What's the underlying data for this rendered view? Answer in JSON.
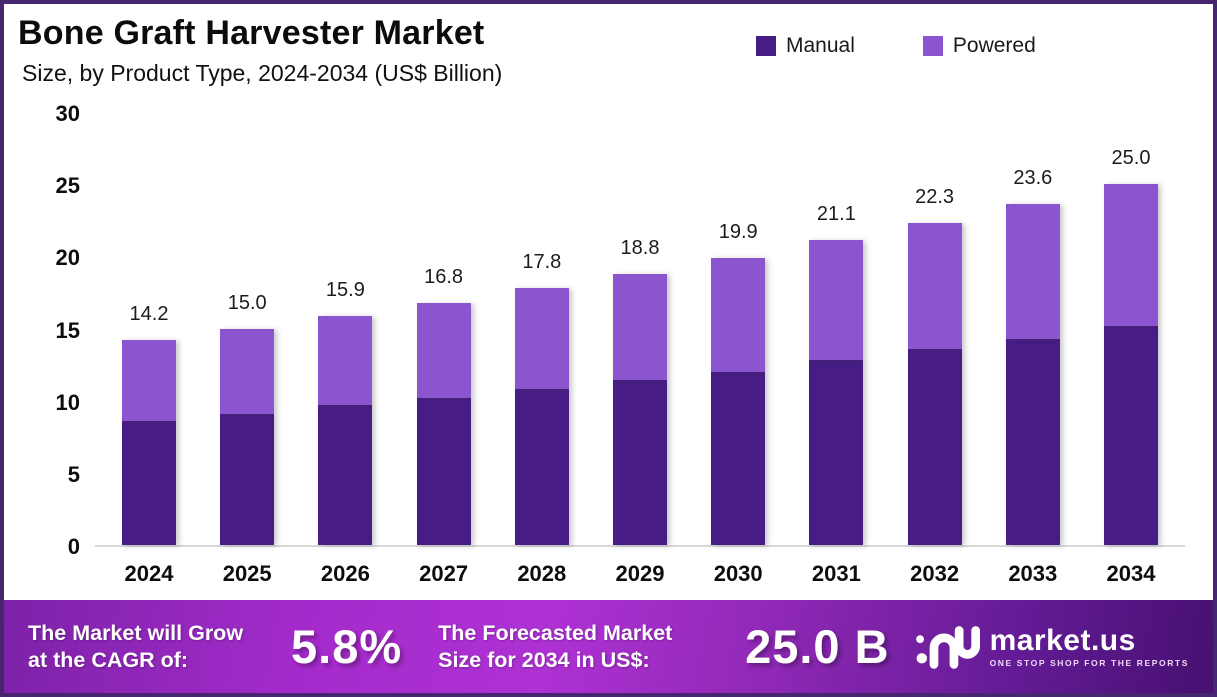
{
  "header": {
    "title": "Bone Graft Harvester Market",
    "subtitle": "Size, by Product Type, 2024-2034 (US$ Billion)"
  },
  "legend": [
    {
      "label": "Manual",
      "color": "#471c87"
    },
    {
      "label": "Powered",
      "color": "#8b55cf"
    }
  ],
  "chart_data": {
    "type": "bar",
    "stacked": true,
    "title": "Bone Graft Harvester Market Size, by Product Type, 2024-2034 (US$ Billion)",
    "categories": [
      "2024",
      "2025",
      "2026",
      "2027",
      "2028",
      "2029",
      "2030",
      "2031",
      "2032",
      "2033",
      "2034"
    ],
    "series": [
      {
        "name": "Manual",
        "color": "#471c87",
        "values": [
          8.6,
          9.1,
          9.7,
          10.2,
          10.8,
          11.4,
          12.0,
          12.8,
          13.6,
          14.3,
          15.2
        ]
      },
      {
        "name": "Powered",
        "color": "#8b55cf",
        "values": [
          5.6,
          5.9,
          6.2,
          6.6,
          7.0,
          7.4,
          7.9,
          8.3,
          8.7,
          9.3,
          9.8
        ]
      }
    ],
    "totals": [
      14.2,
      15.0,
      15.9,
      16.8,
      17.8,
      18.8,
      19.9,
      21.1,
      22.3,
      23.6,
      25.0
    ],
    "xlabel": "",
    "ylabel": "",
    "ylim": [
      0,
      30
    ],
    "yticks": [
      0,
      5,
      10,
      15,
      20,
      25,
      30
    ],
    "grid": false,
    "legend_position": "top-right"
  },
  "footer": {
    "cagr_label": "The Market will Grow at the CAGR of:",
    "cagr_value": "5.8%",
    "forecast_label": "The Forecasted Market Size for 2034 in US$:",
    "forecast_value": "25.0 B",
    "brand_name": "market.us",
    "brand_tagline": "ONE STOP SHOP FOR THE REPORTS"
  },
  "colors": {
    "manual": "#471c87",
    "powered": "#8b55cf",
    "frame_border": "#46266f",
    "banner_left": "#7c22a8",
    "banner_center": "#ae31d3",
    "banner_right": "#471070",
    "axis_line": "#d8d8d8",
    "text": "#0d0d0d"
  }
}
